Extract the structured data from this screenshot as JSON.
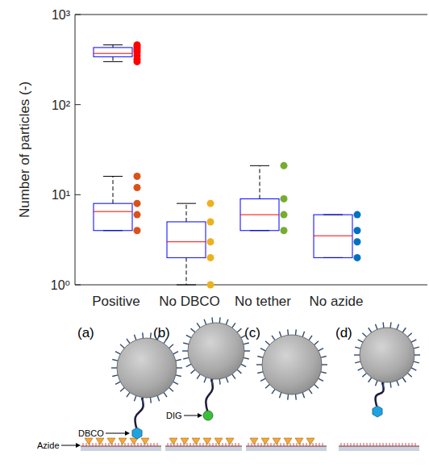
{
  "chart_data": {
    "type": "box",
    "y_label": "Number of particles (-)",
    "categories": [
      "Positive",
      "No DBCO",
      "No tether",
      "No azide"
    ],
    "log": "y",
    "ylim": [
      1,
      1000
    ],
    "yticks": [
      {
        "value": 1,
        "label": "10⁰"
      },
      {
        "value": 10,
        "label": "10¹"
      },
      {
        "value": 100,
        "label": "10²"
      },
      {
        "value": 1000,
        "label": "10³"
      }
    ],
    "boxes": [
      {
        "category": 0,
        "q1": 340,
        "median": 370,
        "q3": 430,
        "whisker_low": 300,
        "whisker_high": 460,
        "color": "#0000ff"
      },
      {
        "category": 0,
        "q1": 4,
        "median": 6.5,
        "q3": 8,
        "whisker_low": 4,
        "whisker_high": 16,
        "color": "#0000ff"
      },
      {
        "category": 1,
        "q1": 2,
        "median": 3,
        "q3": 5,
        "whisker_low": 1,
        "whisker_high": 8,
        "color": "#0000ff"
      },
      {
        "category": 2,
        "q1": 4,
        "median": 6,
        "q3": 9,
        "whisker_low": 4,
        "whisker_high": 21,
        "color": "#0000ff"
      },
      {
        "category": 3,
        "q1": 2,
        "median": 3.5,
        "q3": 6,
        "whisker_low": 2,
        "whisker_high": 6,
        "color": "#0000ff"
      }
    ],
    "points": [
      {
        "category": 0,
        "color": "#ff0000",
        "values": [
          460,
          440,
          420,
          400,
          380,
          350,
          320,
          300
        ]
      },
      {
        "category": 0,
        "color": "#d95319",
        "values": [
          16,
          12,
          8,
          6,
          4
        ]
      },
      {
        "category": 1,
        "color": "#edb120",
        "values": [
          8,
          5,
          3,
          2,
          1
        ]
      },
      {
        "category": 2,
        "color": "#77ac30",
        "values": [
          21,
          9,
          6,
          4
        ]
      },
      {
        "category": 3,
        "color": "#0072bd",
        "values": [
          6,
          4,
          3,
          2
        ]
      }
    ]
  },
  "diagram": {
    "panels": [
      "(a)",
      "(b)",
      "(c)",
      "(d)"
    ],
    "labels": {
      "dbco": "DBCO",
      "azide": "Azide",
      "dig": "DIG"
    }
  }
}
